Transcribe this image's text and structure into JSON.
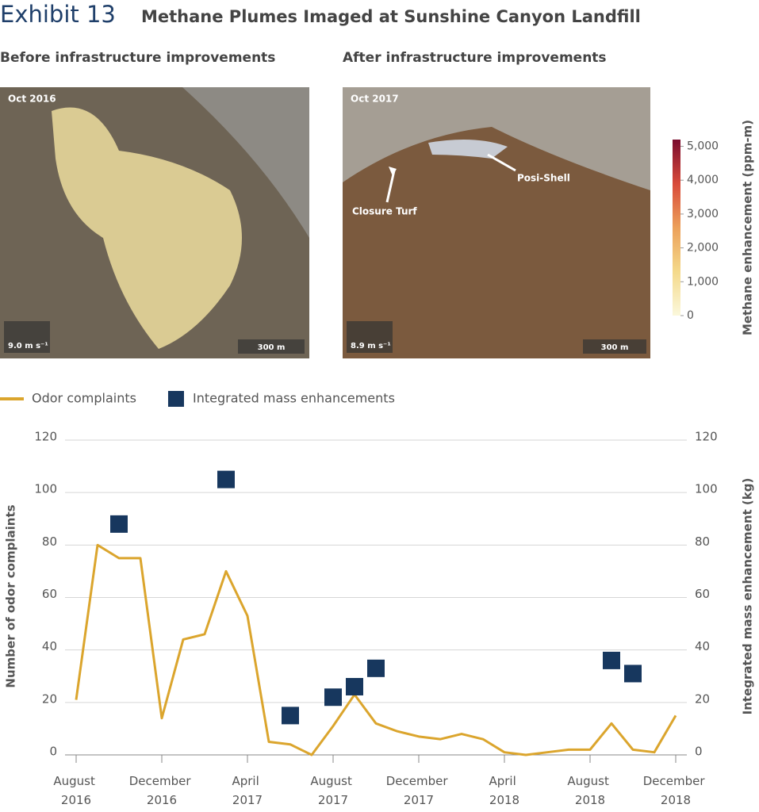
{
  "header": {
    "exhibit": "Exhibit 13",
    "title": "Methane Plumes Imaged at Sunshine Canyon Landfill"
  },
  "images": [
    {
      "heading": "Before infrastructure improvements",
      "date": "Oct 2016",
      "wind": "9.0 m s⁻¹",
      "scale": "300 m"
    },
    {
      "heading": "After infrastructure improvements",
      "date": "Oct 2017",
      "wind": "8.9 m s⁻¹",
      "scale": "300 m",
      "annotations": [
        "Closure Turf",
        "Posi-Shell"
      ]
    }
  ],
  "colorbar": {
    "label": "Methane enhancement (ppm-m)",
    "lim": [
      0,
      5200
    ],
    "ticks": [
      0,
      {
        "value": 1000,
        "label": "1,000"
      },
      {
        "value": 2000,
        "label": "2,000"
      },
      {
        "value": 3000,
        "label": "3,000"
      },
      {
        "value": 4000,
        "label": "4,000"
      },
      {
        "value": 5000,
        "label": "5,000"
      }
    ]
  },
  "chart_data": {
    "type": "line",
    "x": [
      "2016-08",
      "2016-09",
      "2016-10",
      "2016-11",
      "2016-12",
      "2017-01",
      "2017-02",
      "2017-03",
      "2017-04",
      "2017-05",
      "2017-06",
      "2017-07",
      "2017-08",
      "2017-09",
      "2017-10",
      "2017-11",
      "2017-12",
      "2018-01",
      "2018-02",
      "2018-03",
      "2018-04",
      "2018-05",
      "2018-06",
      "2018-07",
      "2018-08",
      "2018-09",
      "2018-10",
      "2018-11",
      "2018-12"
    ],
    "xticks": [
      {
        "value": "2016-08",
        "label": "August 2016"
      },
      {
        "value": "2016-12",
        "label": "December 2016"
      },
      {
        "value": "2017-04",
        "label": "April 2017"
      },
      {
        "value": "2017-08",
        "label": "August 2017"
      },
      {
        "value": "2017-12",
        "label": "December 2017"
      },
      {
        "value": "2018-04",
        "label": "April 2018"
      },
      {
        "value": "2018-08",
        "label": "August 2018"
      },
      {
        "value": "2018-12",
        "label": "December 2018"
      }
    ],
    "y_label": "Number of odor complaints",
    "y2_label": "Integrated mass enhancement (kg)",
    "ylim": [
      0,
      120
    ],
    "yticks": [
      0,
      20,
      40,
      60,
      80,
      100,
      120
    ],
    "y2lim": [
      0,
      120
    ],
    "y2ticks": [
      0,
      20,
      40,
      60,
      80,
      100,
      120
    ],
    "grid": true,
    "legend": "top-left",
    "series": [
      {
        "name": "Odor complaints",
        "type": "line",
        "color": "#dba52d",
        "values": [
          21,
          80,
          75,
          75,
          14,
          44,
          46,
          70,
          53,
          5,
          4,
          0,
          11,
          23,
          12,
          9,
          7,
          6,
          8,
          6,
          1,
          0,
          1,
          2,
          2,
          12,
          2,
          1,
          15
        ]
      },
      {
        "name": "Integrated mass enhancements",
        "type": "scatter",
        "axis": "y2",
        "color": "#17375e",
        "values": [
          null,
          null,
          88,
          null,
          null,
          null,
          null,
          105,
          null,
          null,
          15,
          null,
          22,
          26,
          33,
          null,
          null,
          null,
          null,
          null,
          null,
          null,
          null,
          null,
          null,
          36,
          31,
          null,
          null
        ]
      }
    ]
  }
}
